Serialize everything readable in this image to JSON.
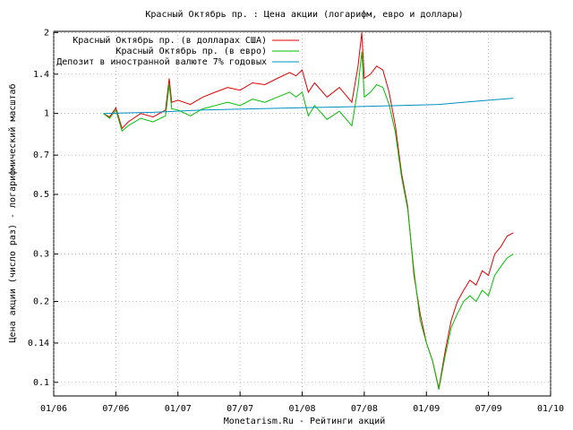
{
  "chart_data": {
    "type": "line",
    "title": "Красный Октябрь пр. : Цена акции (логарифм, евро и доллары)",
    "x_label": "Monetarism.Ru - Рейтинги акций",
    "y_label": "Цена акции (число раз) - логарифмический масштаб",
    "log_y": true,
    "grid": true,
    "legend": "top-left",
    "xlim": [
      2006,
      2010
    ],
    "xticks": [
      {
        "value": 2006,
        "label": "01/06"
      },
      {
        "value": 2006.5,
        "label": "07/06"
      },
      {
        "value": 2007,
        "label": "01/07"
      },
      {
        "value": 2007.5,
        "label": "07/07"
      },
      {
        "value": 2008,
        "label": "01/08"
      },
      {
        "value": 2008.5,
        "label": "07/08"
      },
      {
        "value": 2009,
        "label": "01/09"
      },
      {
        "value": 2009.5,
        "label": "07/09"
      },
      {
        "value": 2010,
        "label": "01/10"
      }
    ],
    "ylim": [
      0.089,
      2.02
    ],
    "yticks": [
      0.1,
      0.14,
      0.2,
      0.3,
      0.5,
      0.7,
      1,
      1.4,
      2
    ],
    "series": [
      {
        "name": "Красный Октябрь пр. (в долларах США)",
        "color": "#e00000",
        "x": [
          2006.4,
          2006.45,
          2006.5,
          2006.55,
          2006.6,
          2006.7,
          2006.8,
          2006.9,
          2006.93,
          2006.95,
          2007.0,
          2007.1,
          2007.2,
          2007.3,
          2007.4,
          2007.5,
          2007.6,
          2007.7,
          2007.8,
          2007.9,
          2007.95,
          2008.0,
          2008.05,
          2008.1,
          2008.2,
          2008.3,
          2008.4,
          2008.45,
          2008.48,
          2008.5,
          2008.55,
          2008.6,
          2008.65,
          2008.7,
          2008.75,
          2008.8,
          2008.85,
          2008.9,
          2008.95,
          2009.0,
          2009.05,
          2009.1,
          2009.15,
          2009.2,
          2009.25,
          2009.3,
          2009.35,
          2009.4,
          2009.45,
          2009.5,
          2009.55,
          2009.6,
          2009.65,
          2009.7
        ],
        "values": [
          1.0,
          0.97,
          1.05,
          0.88,
          0.93,
          1.0,
          0.97,
          1.03,
          1.35,
          1.1,
          1.12,
          1.08,
          1.15,
          1.2,
          1.25,
          1.22,
          1.3,
          1.28,
          1.35,
          1.42,
          1.38,
          1.45,
          1.2,
          1.3,
          1.15,
          1.25,
          1.1,
          1.5,
          2.0,
          1.35,
          1.4,
          1.5,
          1.45,
          1.2,
          0.9,
          0.6,
          0.45,
          0.25,
          0.18,
          0.14,
          0.12,
          0.095,
          0.13,
          0.17,
          0.2,
          0.22,
          0.24,
          0.23,
          0.26,
          0.25,
          0.3,
          0.32,
          0.35,
          0.36
        ]
      },
      {
        "name": "Красный Октябрь пр. (в евро)",
        "color": "#00c000",
        "x": [
          2006.4,
          2006.45,
          2006.5,
          2006.55,
          2006.6,
          2006.7,
          2006.8,
          2006.9,
          2006.93,
          2006.95,
          2007.0,
          2007.1,
          2007.2,
          2007.3,
          2007.4,
          2007.5,
          2007.6,
          2007.7,
          2007.8,
          2007.9,
          2007.95,
          2008.0,
          2008.05,
          2008.1,
          2008.2,
          2008.3,
          2008.4,
          2008.45,
          2008.48,
          2008.5,
          2008.55,
          2008.6,
          2008.65,
          2008.7,
          2008.75,
          2008.8,
          2008.85,
          2008.9,
          2008.95,
          2009.0,
          2009.05,
          2009.1,
          2009.15,
          2009.2,
          2009.25,
          2009.3,
          2009.35,
          2009.4,
          2009.45,
          2009.5,
          2009.55,
          2009.6,
          2009.65,
          2009.7
        ],
        "values": [
          1.0,
          0.96,
          1.03,
          0.86,
          0.9,
          0.96,
          0.93,
          0.98,
          1.28,
          1.04,
          1.03,
          0.98,
          1.04,
          1.07,
          1.1,
          1.07,
          1.13,
          1.1,
          1.15,
          1.2,
          1.15,
          1.2,
          0.98,
          1.07,
          0.95,
          1.02,
          0.9,
          1.25,
          1.7,
          1.15,
          1.2,
          1.28,
          1.25,
          1.08,
          0.85,
          0.58,
          0.44,
          0.26,
          0.17,
          0.14,
          0.12,
          0.094,
          0.125,
          0.16,
          0.18,
          0.2,
          0.21,
          0.2,
          0.22,
          0.21,
          0.25,
          0.27,
          0.29,
          0.3
        ]
      },
      {
        "name": "Депозит в иностранной валюте 7% годовых",
        "color": "#0090c0",
        "x": [
          2006.4,
          2006.8,
          2007.2,
          2007.6,
          2008.0,
          2008.4,
          2008.8,
          2009.1,
          2009.4,
          2009.7
        ],
        "values": [
          1.0,
          1.01,
          1.03,
          1.04,
          1.05,
          1.06,
          1.07,
          1.08,
          1.11,
          1.14
        ]
      }
    ]
  }
}
